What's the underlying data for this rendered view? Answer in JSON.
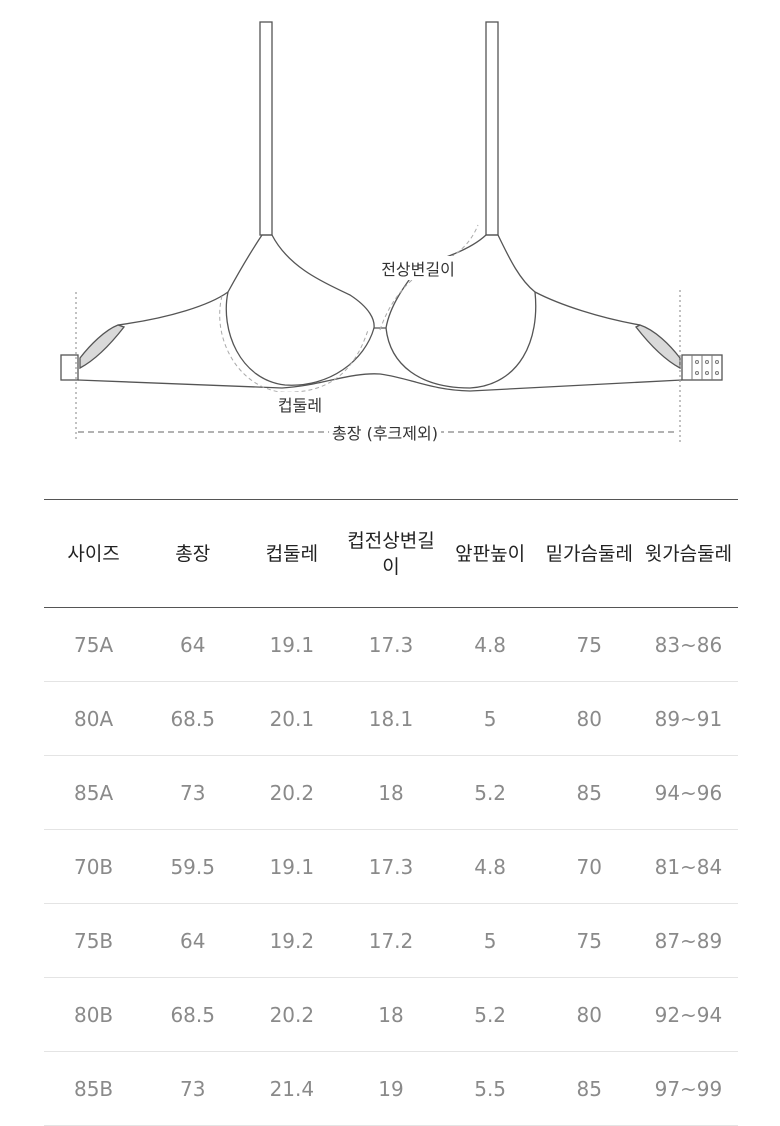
{
  "diagram": {
    "labels": {
      "strap_edge": "전상변길이",
      "cup": "컵둘레",
      "total": "총장 (후크제외)"
    },
    "colors": {
      "line": "#555555",
      "elastic": "#d9d9d9",
      "dashed": "#999999"
    }
  },
  "table": {
    "headers": [
      "사이즈",
      "총장",
      "컵둘레",
      "컵전상변길이",
      "앞판높이",
      "밑가슴둘레",
      "윗가슴둘레"
    ],
    "rows": [
      [
        "75A",
        "64",
        "19.1",
        "17.3",
        "4.8",
        "75",
        "83~86"
      ],
      [
        "80A",
        "68.5",
        "20.1",
        "18.1",
        "5",
        "80",
        "89~91"
      ],
      [
        "85A",
        "73",
        "20.2",
        "18",
        "5.2",
        "85",
        "94~96"
      ],
      [
        "70B",
        "59.5",
        "19.1",
        "17.3",
        "4.8",
        "70",
        "81~84"
      ],
      [
        "75B",
        "64",
        "19.2",
        "17.2",
        "5",
        "75",
        "87~89"
      ],
      [
        "80B",
        "68.5",
        "20.2",
        "18",
        "5.2",
        "80",
        "92~94"
      ],
      [
        "85B",
        "73",
        "21.4",
        "19",
        "5.5",
        "85",
        "97~99"
      ]
    ]
  }
}
